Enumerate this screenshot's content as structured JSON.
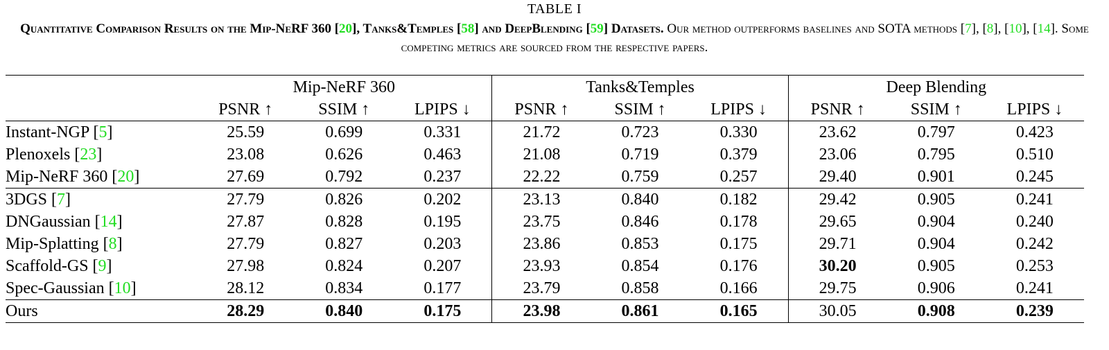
{
  "table_label": "TABLE I",
  "caption": {
    "bold_parts": [
      "Quantitative Comparison Results on the Mip-NeRF 360 [",
      "20",
      "], Tanks&Temples [",
      "58",
      "] and DeepBlending [",
      "59",
      "] Datasets."
    ],
    "rest_parts": [
      " Our method outperforms baselines and SOTA methods [",
      "7",
      "], [",
      "8",
      "], [",
      "10",
      "], [",
      "14",
      "]. Some competing metrics are sourced from the respective papers."
    ]
  },
  "datasets": [
    "Mip-NeRF 360",
    "Tanks&Temples",
    "Deep Blending"
  ],
  "metrics": [
    "PSNR ↑",
    "SSIM ↑",
    "LPIPS ↓",
    "PSNR ↑",
    "SSIM ↑",
    "LPIPS ↓",
    "PSNR ↑",
    "SSIM ↑",
    "LPIPS ↓"
  ],
  "rows": [
    {
      "name": "Instant-NGP",
      "ref": "5",
      "values": [
        "25.59",
        "0.699",
        "0.331",
        "21.72",
        "0.723",
        "0.330",
        "23.62",
        "0.797",
        "0.423"
      ],
      "bold": []
    },
    {
      "name": "Plenoxels",
      "ref": "23",
      "values": [
        "23.08",
        "0.626",
        "0.463",
        "21.08",
        "0.719",
        "0.379",
        "23.06",
        "0.795",
        "0.510"
      ],
      "bold": []
    },
    {
      "name": "Mip-NeRF 360",
      "ref": "20",
      "values": [
        "27.69",
        "0.792",
        "0.237",
        "22.22",
        "0.759",
        "0.257",
        "29.40",
        "0.901",
        "0.245"
      ],
      "bold": []
    },
    {
      "name": "3DGS",
      "ref": "7",
      "values": [
        "27.79",
        "0.826",
        "0.202",
        "23.13",
        "0.840",
        "0.182",
        "29.42",
        "0.905",
        "0.241"
      ],
      "bold": []
    },
    {
      "name": "DNGaussian",
      "ref": "14",
      "values": [
        "27.87",
        "0.828",
        "0.195",
        "23.75",
        "0.846",
        "0.178",
        "29.65",
        "0.904",
        "0.240"
      ],
      "bold": []
    },
    {
      "name": "Mip-Splatting",
      "ref": "8",
      "values": [
        "27.79",
        "0.827",
        "0.203",
        "23.86",
        "0.853",
        "0.175",
        "29.71",
        "0.904",
        "0.242"
      ],
      "bold": []
    },
    {
      "name": "Scaffold-GS",
      "ref": "9",
      "values": [
        "27.98",
        "0.824",
        "0.207",
        "23.93",
        "0.854",
        "0.176",
        "30.20",
        "0.905",
        "0.253"
      ],
      "bold": [
        6
      ]
    },
    {
      "name": "Spec-Gaussian",
      "ref": "10",
      "values": [
        "28.12",
        "0.834",
        "0.177",
        "23.79",
        "0.858",
        "0.166",
        "29.75",
        "0.906",
        "0.241"
      ],
      "bold": []
    },
    {
      "name": "Ours",
      "ref": "",
      "values": [
        "28.29",
        "0.840",
        "0.175",
        "23.98",
        "0.861",
        "0.165",
        "30.05",
        "0.908",
        "0.239"
      ],
      "bold": [
        0,
        1,
        2,
        3,
        4,
        5,
        7,
        8
      ]
    }
  ],
  "colors": {
    "citation": "#22dd22",
    "text": "#000000",
    "background": "#ffffff"
  }
}
